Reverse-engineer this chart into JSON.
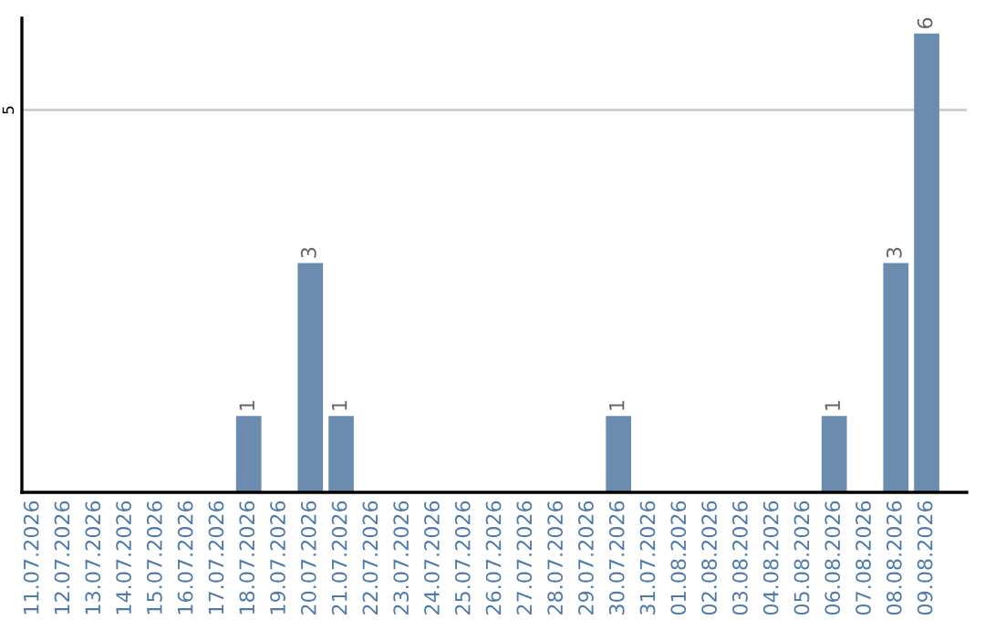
{
  "chart_data": {
    "type": "bar",
    "categories": [
      "11.07.2026",
      "12.07.2026",
      "13.07.2026",
      "14.07.2026",
      "15.07.2026",
      "16.07.2026",
      "17.07.2026",
      "18.07.2026",
      "19.07.2026",
      "20.07.2026",
      "21.07.2026",
      "22.07.2026",
      "23.07.2026",
      "24.07.2026",
      "25.07.2026",
      "26.07.2026",
      "27.07.2026",
      "28.07.2026",
      "29.07.2026",
      "30.07.2026",
      "31.07.2026",
      "01.08.2026",
      "02.08.2026",
      "03.08.2026",
      "04.08.2026",
      "05.08.2026",
      "06.08.2026",
      "07.08.2026",
      "08.08.2026",
      "09.08.2026"
    ],
    "values": [
      0,
      0,
      0,
      0,
      0,
      0,
      0,
      1,
      0,
      3,
      1,
      0,
      0,
      0,
      0,
      0,
      0,
      0,
      0,
      1,
      0,
      0,
      0,
      0,
      0,
      0,
      1,
      0,
      3,
      6
    ],
    "value_labels": [
      null,
      null,
      null,
      null,
      null,
      null,
      null,
      "1",
      null,
      "3",
      "1",
      null,
      null,
      null,
      null,
      null,
      null,
      null,
      null,
      "1",
      null,
      null,
      null,
      null,
      null,
      null,
      "1",
      null,
      "3",
      "6"
    ],
    "color": "#6b8cae",
    "ylim": [
      0,
      6.2
    ],
    "yticks": [
      5
    ],
    "grid": "y"
  }
}
